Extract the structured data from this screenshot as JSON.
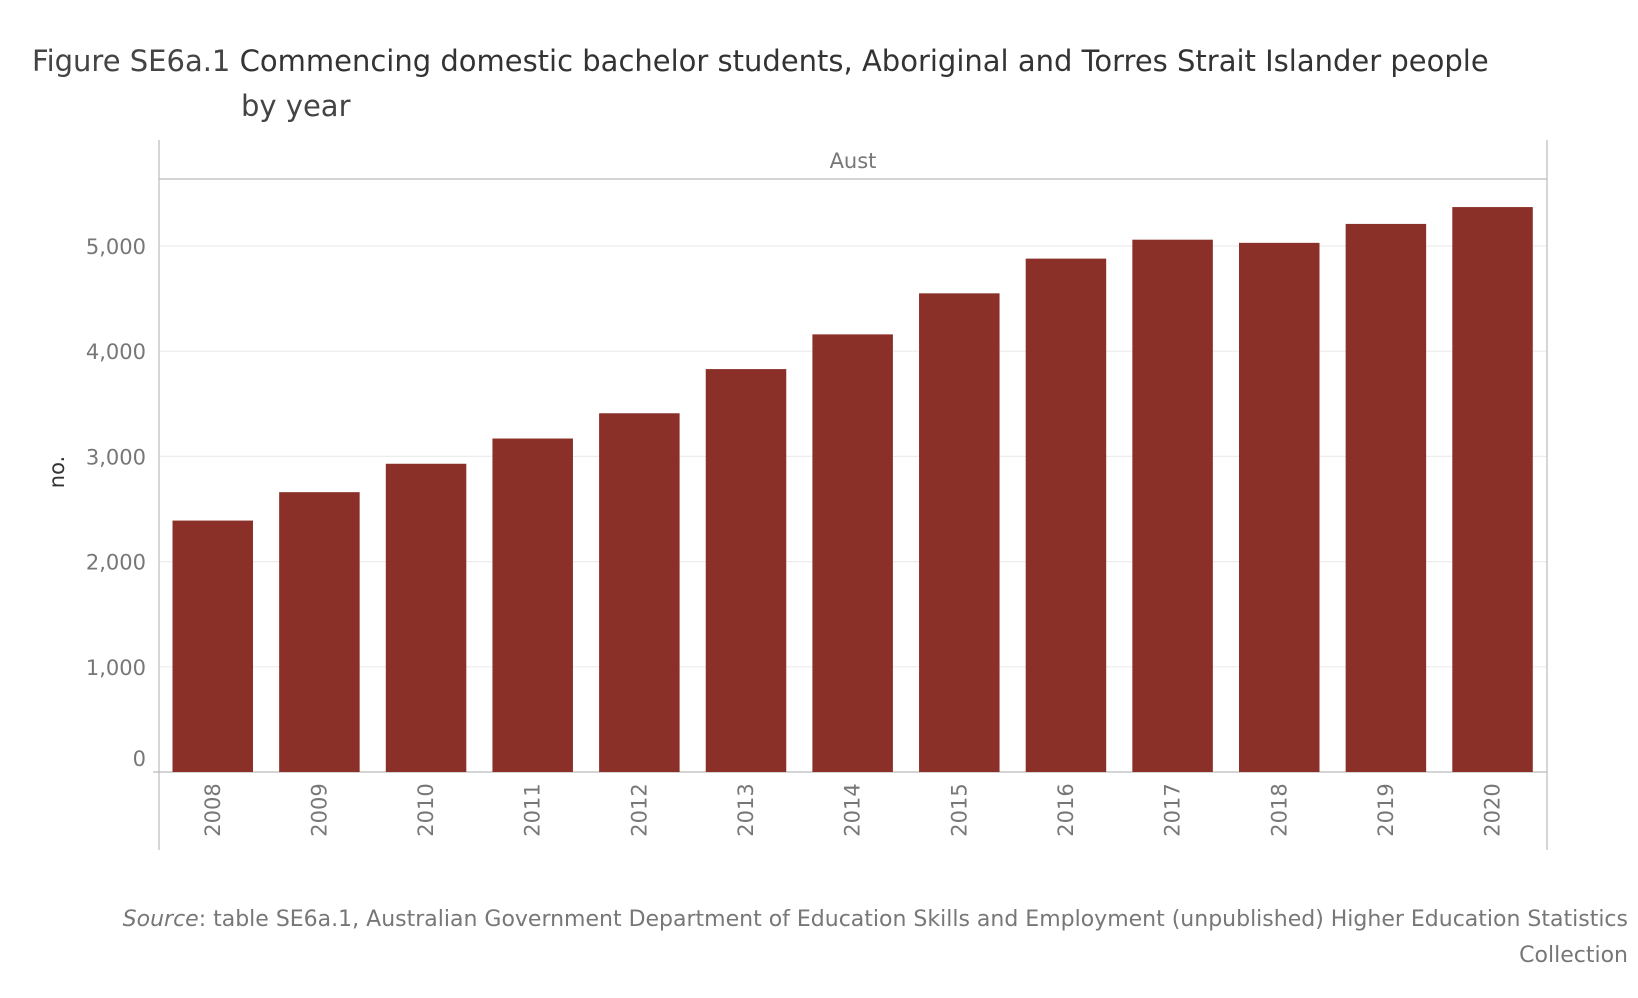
{
  "title": {
    "figure_number": "Figure SE6a.1",
    "main": "Commencing domestic bachelor students, Aboriginal and Torres Strait Islander people",
    "continuation": "by year"
  },
  "source": {
    "label": "Source",
    "text": ": table SE6a.1, Australian Government Department of Education Skills and Employment (unpublished) Higher Education Statistics Collection"
  },
  "colors": {
    "bar": "#8b2f29",
    "gridline": "#ececec",
    "axis": "#bbbbbb",
    "tick_text": "#777777",
    "axis_title": "#333333"
  },
  "chart_data": {
    "type": "bar",
    "panel_label": "Aust",
    "ylabel": "no.",
    "xlabel": "",
    "ylim": [
      0,
      5600
    ],
    "yticks": [
      0,
      1000,
      2000,
      3000,
      4000,
      5000
    ],
    "ytick_labels": [
      "0",
      "1,000",
      "2,000",
      "3,000",
      "4,000",
      "5,000"
    ],
    "grid": true,
    "categories": [
      "2008",
      "2009",
      "2010",
      "2011",
      "2012",
      "2013",
      "2014",
      "2015",
      "2016",
      "2017",
      "2018",
      "2019",
      "2020"
    ],
    "values": [
      2390,
      2660,
      2930,
      3170,
      3410,
      3830,
      4160,
      4550,
      4880,
      5060,
      5030,
      5210,
      5370
    ]
  }
}
